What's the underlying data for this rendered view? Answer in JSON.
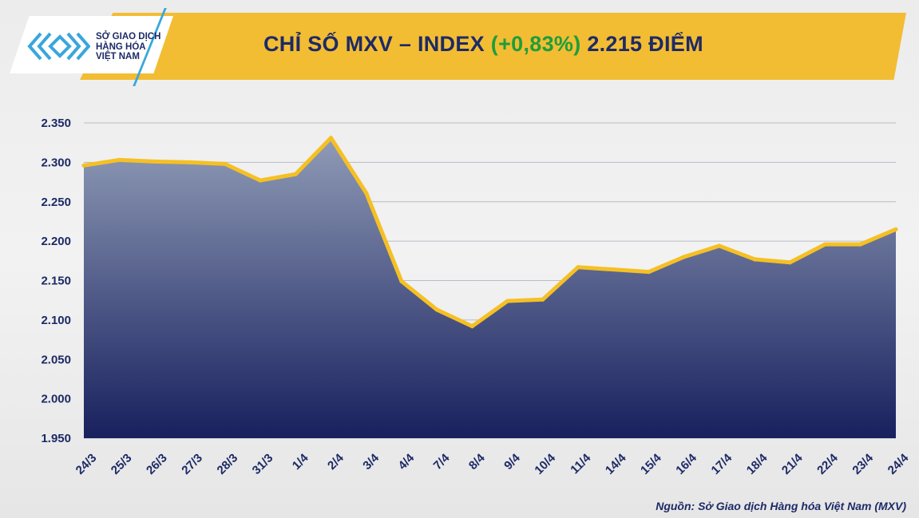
{
  "header": {
    "logo_text": [
      "SỞ GIAO DỊCH",
      "HÀNG HÓA",
      "VIỆT NAM"
    ],
    "title_main": "CHỈ SỐ MXV – INDEX",
    "title_change": "(+0,83%)",
    "title_value": "2.215 ĐIỂM"
  },
  "colors": {
    "banner": "#f2bd33",
    "title": "#1d2a66",
    "change": "#1f9d3a",
    "line": "#f5c024",
    "area_top": "#8f9bb6",
    "area_bottom": "#18205e"
  },
  "chart_data": {
    "type": "area",
    "title": "CHỈ SỐ MXV – INDEX (+0,83%) 2.215 ĐIỂM",
    "categories": [
      "24/3",
      "25/3",
      "26/3",
      "27/3",
      "28/3",
      "31/3",
      "1/4",
      "2/4",
      "3/4",
      "4/4",
      "7/4",
      "8/4",
      "9/4",
      "10/4",
      "11/4",
      "14/4",
      "15/4",
      "16/4",
      "17/4",
      "18/4",
      "21/4",
      "22/4",
      "23/4",
      "24/4"
    ],
    "values": [
      2296,
      2303,
      2301,
      2300,
      2298,
      2277,
      2285,
      2331,
      2261,
      2149,
      2113,
      2092,
      2124,
      2126,
      2167,
      2164,
      2161,
      2180,
      2194,
      2177,
      2173,
      2196,
      2196,
      2215
    ],
    "ylim": [
      1950,
      2350
    ],
    "yticks": [
      1950,
      2000,
      2050,
      2100,
      2150,
      2200,
      2250,
      2300,
      2350
    ],
    "ytick_labels": [
      "1.950",
      "2.000",
      "2.050",
      "2.100",
      "2.150",
      "2.200",
      "2.250",
      "2.300",
      "2.350"
    ],
    "grid": true,
    "legend": "none"
  },
  "footer": {
    "source": "Nguồn: Sở Giao dịch Hàng hóa Việt Nam (MXV)"
  }
}
